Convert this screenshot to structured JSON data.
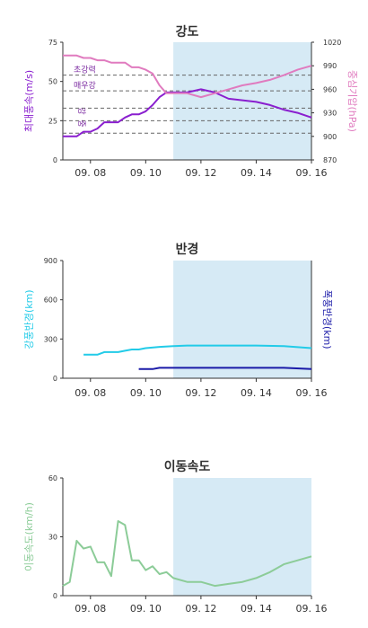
{
  "colors": {
    "forecast_shade": "#d6eaf5",
    "wind": "#8a1fcf",
    "pressure": "#e07bbf",
    "radius_strong": "#22cbe8",
    "radius_storm": "#1a1aa8",
    "speed": "#8ccc98",
    "grid": "#666666"
  },
  "chart_data": [
    {
      "type": "line",
      "title": "강도",
      "x_ticks": [
        "09. 08",
        "09. 10",
        "09. 12",
        "09. 14",
        "09. 16"
      ],
      "forecast_shaded_from": "09. 11",
      "y_left": {
        "label": "최대풍속(m/s)",
        "ticks": [
          "0",
          "25",
          "50",
          "75"
        ],
        "range": [
          0,
          75
        ]
      },
      "y_right": {
        "label": "중심기압(hPa)",
        "ticks": [
          "870",
          "900",
          "930",
          "960",
          "990",
          "1020"
        ],
        "range": [
          870,
          1020
        ]
      },
      "reference_lines": [
        {
          "label": "초강력",
          "value": 54
        },
        {
          "label": "매우강",
          "value": 44
        },
        {
          "label": "강",
          "value": 33
        },
        {
          "label": "중",
          "value": 25
        },
        {
          "value": 17
        }
      ],
      "series": [
        {
          "name": "최대풍속(m/s)",
          "axis": "left",
          "x": [
            7.0,
            7.5,
            7.75,
            8.0,
            8.25,
            8.5,
            8.75,
            9.0,
            9.25,
            9.5,
            9.75,
            10.0,
            10.25,
            10.5,
            10.75,
            11.0,
            11.5,
            12.0,
            12.5,
            13.0,
            13.5,
            14.0,
            14.5,
            15.0,
            15.5,
            16.0
          ],
          "values": [
            15,
            15,
            18,
            18,
            20,
            24,
            24,
            24,
            27,
            29,
            29,
            31,
            35,
            40,
            43,
            43,
            43,
            45,
            43,
            39,
            38,
            37,
            35,
            32,
            30,
            27
          ]
        },
        {
          "name": "중심기압(hPa)",
          "axis": "right",
          "x": [
            7.0,
            7.25,
            7.5,
            7.75,
            8.0,
            8.25,
            8.5,
            8.75,
            9.0,
            9.25,
            9.5,
            9.75,
            10.0,
            10.25,
            10.5,
            10.75,
            11.0,
            11.5,
            12.0,
            12.5,
            13.0,
            13.5,
            14.0,
            14.5,
            15.0,
            15.5,
            16.0
          ],
          "values": [
            1003,
            1003,
            1003,
            1000,
            1000,
            997,
            997,
            994,
            994,
            994,
            988,
            988,
            985,
            980,
            965,
            955,
            955,
            955,
            950,
            955,
            960,
            965,
            968,
            972,
            978,
            985,
            990
          ]
        }
      ]
    },
    {
      "type": "line",
      "title": "반경",
      "x_ticks": [
        "09. 08",
        "09. 10",
        "09. 12",
        "09. 14",
        "09. 16"
      ],
      "forecast_shaded_from": "09. 11",
      "y_left": {
        "label": "강풍반경(km)",
        "ticks": [
          "0",
          "300",
          "600",
          "900"
        ],
        "range": [
          0,
          900
        ]
      },
      "y_right": {
        "label": "폭풍반경(km)"
      },
      "series": [
        {
          "name": "강풍반경(km)",
          "axis": "left",
          "x": [
            7.75,
            8.25,
            8.5,
            9.0,
            9.25,
            9.5,
            9.75,
            10.0,
            10.5,
            11.0,
            11.5,
            12.0,
            13.0,
            14.0,
            15.0,
            16.0
          ],
          "values": [
            180,
            180,
            200,
            200,
            210,
            220,
            220,
            230,
            240,
            245,
            250,
            250,
            250,
            250,
            245,
            230
          ]
        },
        {
          "name": "폭풍반경(km)",
          "axis": "left",
          "x": [
            9.75,
            10.25,
            10.5,
            11.0,
            12.0,
            13.0,
            14.0,
            15.0,
            16.0
          ],
          "values": [
            70,
            70,
            80,
            80,
            80,
            80,
            80,
            80,
            70
          ]
        }
      ]
    },
    {
      "type": "line",
      "title": "이동속도",
      "x_ticks": [
        "09. 08",
        "09. 10",
        "09. 12",
        "09. 14",
        "09. 16"
      ],
      "forecast_shaded_from": "09. 11",
      "y_left": {
        "label": "이동속도(km/h)",
        "ticks": [
          "0",
          "30",
          "60"
        ],
        "range": [
          0,
          60
        ]
      },
      "series": [
        {
          "name": "이동속도(km/h)",
          "axis": "left",
          "x": [
            7.0,
            7.25,
            7.5,
            7.75,
            8.0,
            8.25,
            8.5,
            8.75,
            9.0,
            9.25,
            9.5,
            9.75,
            10.0,
            10.25,
            10.5,
            10.75,
            11.0,
            11.5,
            12.0,
            12.5,
            13.0,
            13.5,
            14.0,
            14.5,
            15.0,
            15.5,
            16.0
          ],
          "values": [
            5,
            7,
            28,
            24,
            25,
            17,
            17,
            10,
            38,
            36,
            18,
            18,
            13,
            15,
            11,
            12,
            9,
            7,
            7,
            5,
            6,
            7,
            9,
            12,
            16,
            18,
            20
          ]
        }
      ]
    }
  ]
}
